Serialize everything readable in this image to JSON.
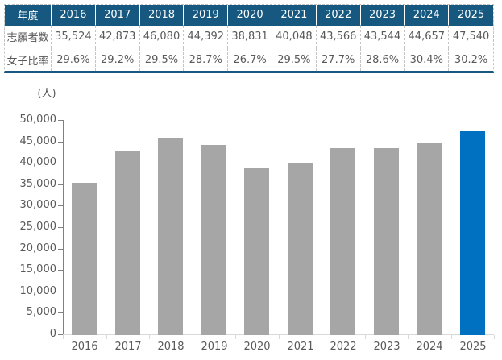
{
  "table": {
    "header_label": "年度",
    "years": [
      "2016",
      "2017",
      "2018",
      "2019",
      "2020",
      "2021",
      "2022",
      "2023",
      "2024",
      "2025"
    ],
    "rows": [
      {
        "label": "志願者数",
        "values": [
          "35,524",
          "42,873",
          "46,080",
          "44,392",
          "38,831",
          "40,048",
          "43,566",
          "43,544",
          "44,657",
          "47,540"
        ]
      },
      {
        "label": "女子比率",
        "values": [
          "29.6%",
          "29.2%",
          "29.5%",
          "28.7%",
          "26.7%",
          "29.5%",
          "27.7%",
          "28.6%",
          "30.4%",
          "30.2%"
        ]
      }
    ]
  },
  "chart_data": {
    "type": "bar",
    "title": "",
    "unit_label": "(人)",
    "xlabel": "",
    "ylabel": "人",
    "categories": [
      "2016",
      "2017",
      "2018",
      "2019",
      "2020",
      "2021",
      "2022",
      "2023",
      "2024",
      "2025"
    ],
    "values": [
      35524,
      42873,
      46080,
      44392,
      38831,
      40048,
      43566,
      43544,
      44657,
      47540
    ],
    "ylim": [
      0,
      50000
    ],
    "ytick_step": 5000,
    "grid": false,
    "legend": "none",
    "highlight_index": 9,
    "bar_color": "#A6A6A6",
    "highlight_color": "#0070C0"
  },
  "colors": {
    "table_header_bg": "#16587F",
    "table_header_text": "#FFFFFF",
    "body_text": "#595959",
    "y_axis_line": "#808080",
    "x_axis_line": "#D9D9D9"
  }
}
